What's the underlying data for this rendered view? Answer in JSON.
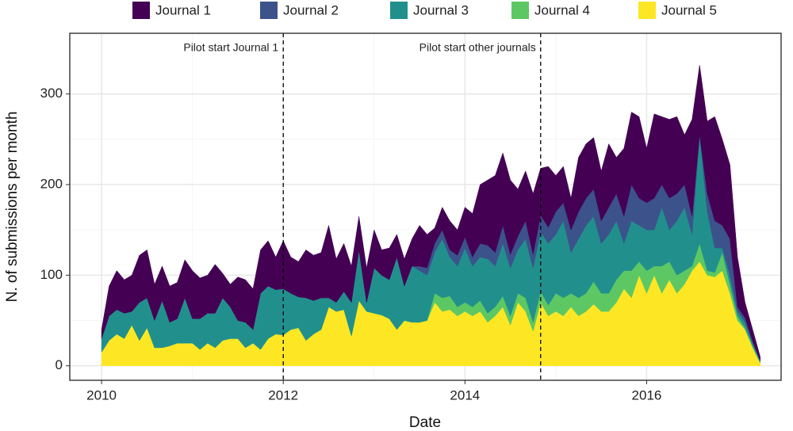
{
  "chart_data": {
    "type": "stacked_area",
    "x_label": "Date",
    "y_label": "N. of submissions per month",
    "x": [
      2010,
      2010.083,
      2010.167,
      2010.25,
      2010.333,
      2010.417,
      2010.5,
      2010.583,
      2010.667,
      2010.75,
      2010.833,
      2010.917,
      2011,
      2011.083,
      2011.167,
      2011.25,
      2011.333,
      2011.417,
      2011.5,
      2011.583,
      2011.667,
      2011.75,
      2011.833,
      2011.917,
      2012,
      2012.083,
      2012.167,
      2012.25,
      2012.333,
      2012.417,
      2012.5,
      2012.583,
      2012.667,
      2012.75,
      2012.833,
      2012.917,
      2013,
      2013.083,
      2013.167,
      2013.25,
      2013.333,
      2013.417,
      2013.5,
      2013.583,
      2013.667,
      2013.75,
      2013.833,
      2013.917,
      2014,
      2014.083,
      2014.167,
      2014.25,
      2014.333,
      2014.417,
      2014.5,
      2014.583,
      2014.667,
      2014.75,
      2014.833,
      2014.917,
      2015,
      2015.083,
      2015.167,
      2015.25,
      2015.333,
      2015.417,
      2015.5,
      2015.583,
      2015.667,
      2015.75,
      2015.833,
      2015.917,
      2016,
      2016.083,
      2016.167,
      2016.25,
      2016.333,
      2016.417,
      2016.5,
      2016.583,
      2016.667,
      2016.75,
      2016.833,
      2016.917,
      2017,
      2017.083,
      2017.167,
      2017.25
    ],
    "series": [
      {
        "name": "Journal 1",
        "color": "#440154",
        "values": [
          10,
          33,
          43,
          37,
          40,
          52,
          53,
          40,
          38,
          40,
          40,
          42,
          53,
          45,
          42,
          54,
          27,
          25,
          48,
          47,
          45,
          48,
          50,
          36,
          53,
          40,
          39,
          53,
          50,
          50,
          80,
          48,
          53,
          40,
          37,
          38,
          42,
          28,
          35,
          25,
          30,
          30,
          45,
          37,
          17,
          25,
          32,
          28,
          33,
          48,
          65,
          72,
          85,
          80,
          82,
          52,
          55,
          67,
          52,
          67,
          40,
          40,
          35,
          60,
          60,
          57,
          55,
          70,
          40,
          75,
          80,
          90,
          60,
          93,
          75,
          87,
          85,
          55,
          107,
          77,
          80,
          115,
          95,
          82,
          55,
          17,
          13,
          4
        ]
      },
      {
        "name": "Journal 2",
        "color": "#3b528b",
        "values": [
          0,
          0,
          0,
          0,
          0,
          0,
          0,
          0,
          0,
          0,
          0,
          0,
          0,
          0,
          0,
          0,
          0,
          0,
          0,
          0,
          0,
          0,
          0,
          0,
          0,
          0,
          0,
          0,
          0,
          0,
          0,
          0,
          0,
          0,
          0,
          0,
          0,
          0,
          0,
          0,
          0,
          0,
          5,
          8,
          10,
          10,
          8,
          12,
          12,
          10,
          15,
          15,
          15,
          20,
          15,
          15,
          20,
          15,
          18,
          18,
          25,
          20,
          25,
          30,
          30,
          30,
          25,
          30,
          30,
          30,
          40,
          30,
          30,
          35,
          25,
          35,
          30,
          25,
          20,
          0,
          20,
          30,
          25,
          40,
          5,
          5,
          2,
          1
        ]
      },
      {
        "name": "Journal 3",
        "color": "#21908d",
        "values": [
          15,
          27,
          27,
          28,
          15,
          42,
          33,
          30,
          52,
          26,
          27,
          50,
          27,
          34,
          33,
          38,
          47,
          35,
          20,
          28,
          15,
          62,
          58,
          49,
          51,
          40,
          34,
          47,
          37,
          35,
          10,
          10,
          20,
          37,
          56,
          10,
          50,
          44,
          43,
          80,
          38,
          62,
          57,
          50,
          45,
          65,
          43,
          45,
          60,
          45,
          48,
          60,
          45,
          58,
          53,
          48,
          65,
          60,
          66,
          68,
          65,
          85,
          45,
          65,
          75,
          72,
          55,
          65,
          65,
          30,
          55,
          40,
          45,
          40,
          65,
          35,
          60,
          70,
          35,
          120,
          65,
          27,
          5,
          10,
          5,
          6,
          3,
          1
        ]
      },
      {
        "name": "Journal 4",
        "color": "#5dc863",
        "values": [
          0,
          0,
          0,
          0,
          0,
          0,
          0,
          0,
          0,
          0,
          0,
          0,
          0,
          0,
          0,
          0,
          0,
          0,
          0,
          0,
          0,
          0,
          0,
          0,
          0,
          0,
          0,
          0,
          0,
          0,
          0,
          0,
          0,
          0,
          0,
          0,
          0,
          0,
          0,
          0,
          0,
          0,
          0,
          0,
          10,
          15,
          15,
          10,
          10,
          10,
          12,
          10,
          10,
          12,
          10,
          10,
          15,
          10,
          12,
          12,
          20,
          20,
          15,
          20,
          20,
          25,
          20,
          20,
          25,
          20,
          30,
          15,
          25,
          10,
          30,
          20,
          20,
          15,
          5,
          20,
          5,
          5,
          20,
          10,
          5,
          2,
          2,
          1
        ]
      },
      {
        "name": "Journal 5",
        "color": "#fde725",
        "values": [
          15,
          28,
          35,
          30,
          45,
          28,
          42,
          20,
          20,
          22,
          25,
          25,
          25,
          18,
          25,
          20,
          28,
          30,
          30,
          20,
          25,
          18,
          30,
          35,
          34,
          40,
          42,
          28,
          35,
          40,
          65,
          60,
          62,
          33,
          72,
          60,
          58,
          56,
          52,
          40,
          50,
          48,
          48,
          50,
          70,
          60,
          62,
          55,
          60,
          55,
          60,
          48,
          55,
          65,
          45,
          70,
          60,
          38,
          70,
          55,
          60,
          55,
          65,
          55,
          60,
          68,
          60,
          60,
          70,
          85,
          75,
          100,
          80,
          100,
          80,
          95,
          80,
          90,
          105,
          115,
          100,
          98,
          105,
          80,
          50,
          40,
          20,
          3
        ]
      }
    ],
    "annotations": [
      {
        "x": 2012,
        "text": "Pilot start Journal 1"
      },
      {
        "x": 2014.833,
        "text": "Pilot start other journals"
      }
    ],
    "xlim": [
      2009.65,
      2017.48
    ],
    "ylim": [
      -16,
      367
    ],
    "xticks": [
      2010,
      2012,
      2014,
      2016
    ],
    "yticks": [
      0,
      100,
      200,
      300
    ],
    "grid": true,
    "legend": "top"
  }
}
